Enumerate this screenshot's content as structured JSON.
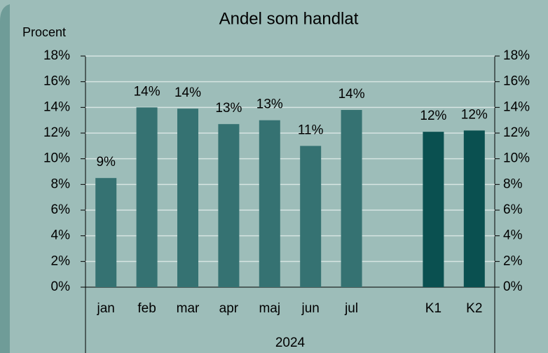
{
  "chart_data": {
    "type": "bar",
    "title": "Andel som handlat",
    "y_label": "Procent",
    "x_group_label": "2024",
    "categories": [
      "jan",
      "feb",
      "mar",
      "apr",
      "maj",
      "jun",
      "jul",
      null,
      "K1",
      "K2"
    ],
    "values": [
      8.5,
      14.0,
      13.9,
      12.7,
      13.0,
      11.0,
      13.8,
      null,
      12.1,
      12.2
    ],
    "value_labels": [
      "9%",
      "14%",
      "14%",
      "13%",
      "13%",
      "11%",
      "14%",
      null,
      "12%",
      "12%"
    ],
    "colors": [
      "#357272",
      "#357272",
      "#357272",
      "#357272",
      "#357272",
      "#357272",
      "#357272",
      null,
      "#0a5050",
      "#0a5050"
    ],
    "ylim": [
      0,
      18
    ],
    "yticks": [
      {
        "value": 0,
        "label": "0%"
      },
      {
        "value": 2,
        "label": "2%"
      },
      {
        "value": 4,
        "label": "4%"
      },
      {
        "value": 6,
        "label": "6%"
      },
      {
        "value": 8,
        "label": "8%"
      },
      {
        "value": 10,
        "label": "10%"
      },
      {
        "value": 12,
        "label": "12%"
      },
      {
        "value": 14,
        "label": "14%"
      },
      {
        "value": 16,
        "label": "16%"
      },
      {
        "value": 18,
        "label": "18%"
      }
    ],
    "y2lim": [
      0,
      18
    ],
    "y2ticks": [
      {
        "value": 0,
        "label": "0%"
      },
      {
        "value": 2,
        "label": "2%"
      },
      {
        "value": 4,
        "label": "4%"
      },
      {
        "value": 6,
        "label": "6%"
      },
      {
        "value": 8,
        "label": "8%"
      },
      {
        "value": 10,
        "label": "10%"
      },
      {
        "value": 12,
        "label": "12%"
      },
      {
        "value": 14,
        "label": "14%"
      },
      {
        "value": 16,
        "label": "16%"
      },
      {
        "value": 18,
        "label": "18%"
      }
    ],
    "grid": true
  }
}
